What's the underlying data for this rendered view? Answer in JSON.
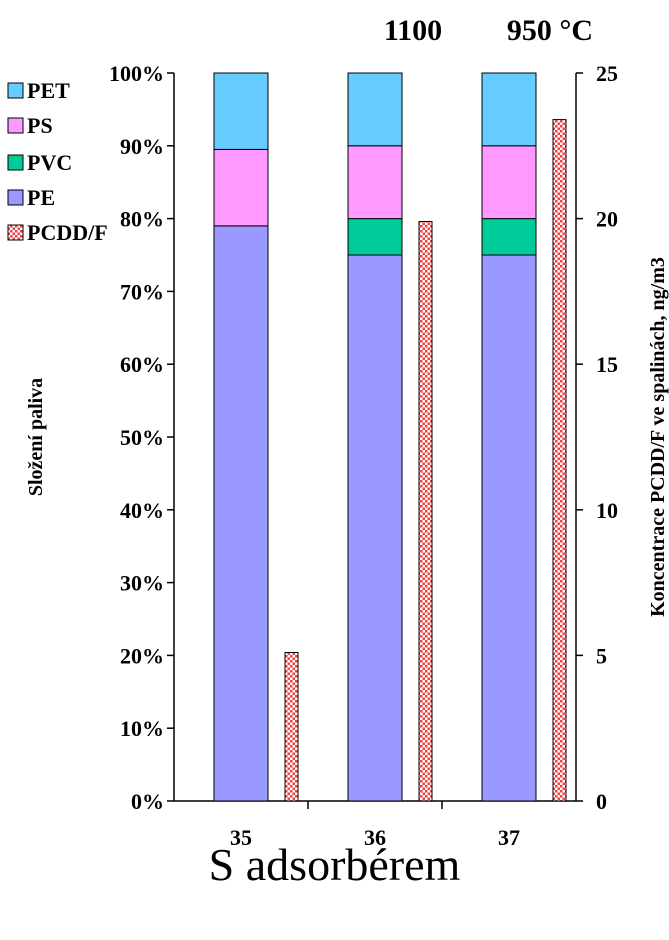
{
  "colors": {
    "PET": "#66ccff",
    "PS": "#ff99ff",
    "PVC": "#00cc99",
    "PE": "#9999ff",
    "PCDD/F_fill": "#ffffff",
    "PCDD/F_pattern": "#ee4444"
  },
  "chart_data": {
    "type": "bar",
    "categories": [
      "35",
      "36",
      "37"
    ],
    "series": [
      {
        "name": "PE",
        "axis": "left",
        "values": [
          79,
          75,
          75
        ]
      },
      {
        "name": "PVC",
        "axis": "left",
        "values": [
          0,
          5,
          5
        ]
      },
      {
        "name": "PS",
        "axis": "left",
        "values": [
          10.5,
          10,
          10
        ]
      },
      {
        "name": "PET",
        "axis": "left",
        "values": [
          10.5,
          10,
          10
        ]
      },
      {
        "name": "PCDD/F",
        "axis": "right",
        "values": [
          5.1,
          19.9,
          23.4
        ]
      }
    ],
    "stacked_series": [
      "PE",
      "PVC",
      "PS",
      "PET"
    ],
    "legend": [
      "PET",
      "PS",
      "PVC",
      "PE",
      "PCDD/F"
    ],
    "legend_position": "top-left",
    "left_axis": {
      "label": "Složení paliva",
      "ylim": [
        0,
        100
      ],
      "ticks": [
        "0%",
        "10%",
        "20%",
        "30%",
        "40%",
        "50%",
        "60%",
        "70%",
        "80%",
        "90%",
        "100%"
      ]
    },
    "right_axis": {
      "label": "Koncentrace PCDD/F ve spalinách, ng/m3",
      "ylim": [
        0,
        25
      ],
      "ticks": [
        "0",
        "5",
        "10",
        "15",
        "20",
        "25"
      ]
    },
    "annotations": [
      "1100",
      "950 °C"
    ],
    "footer": "S adsorbérem",
    "grid": false
  }
}
